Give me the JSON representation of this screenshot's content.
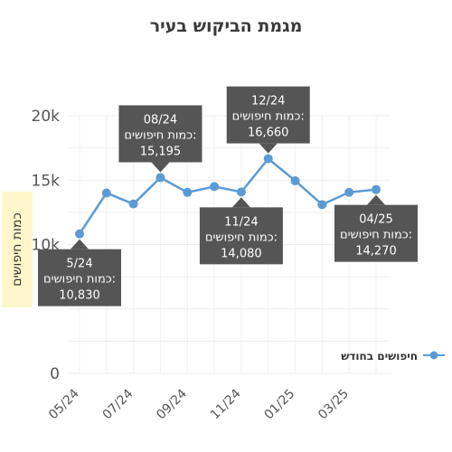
{
  "chart_data": {
    "type": "line",
    "title": "מגמת הביקוש בעיר",
    "ylabel": "כמות חיפושים",
    "xlabel": "",
    "ylim": [
      0,
      20000
    ],
    "yticks": [
      0,
      10000,
      15000,
      20000
    ],
    "ytick_labels": [
      "0",
      "10k",
      "15k",
      "20k"
    ],
    "grid": true,
    "legend_position": "right",
    "x": [
      "05/24",
      "06/24",
      "07/24",
      "08/24",
      "09/24",
      "10/24",
      "11/24",
      "12/24",
      "01/25",
      "02/25",
      "03/25",
      "04/25"
    ],
    "xtick_labels": [
      "05/24",
      "07/24",
      "09/24",
      "11/24",
      "01/25",
      "03/25"
    ],
    "series": [
      {
        "name": "חיפושים בחודש",
        "color": "#5b9bd5",
        "values": [
          10830,
          14000,
          13150,
          15195,
          14050,
          14500,
          14080,
          16660,
          14950,
          13100,
          14050,
          14270
        ]
      }
    ],
    "annotations": [
      {
        "index": 0,
        "date": "5/24",
        "label": "כמות חיפושים:",
        "value": "10,830",
        "position": "below"
      },
      {
        "index": 3,
        "date": "08/24",
        "label": "כמות חיפושים:",
        "value": "15,195",
        "position": "above"
      },
      {
        "index": 6,
        "date": "11/24",
        "label": "כמות חיפושים:",
        "value": "14,080",
        "position": "below"
      },
      {
        "index": 7,
        "date": "12/24",
        "label": "כמות חיפושים:",
        "value": "16,660",
        "position": "above"
      },
      {
        "index": 11,
        "date": "04/25",
        "label": "כמות חיפושים:",
        "value": "14,270",
        "position": "below"
      }
    ]
  }
}
